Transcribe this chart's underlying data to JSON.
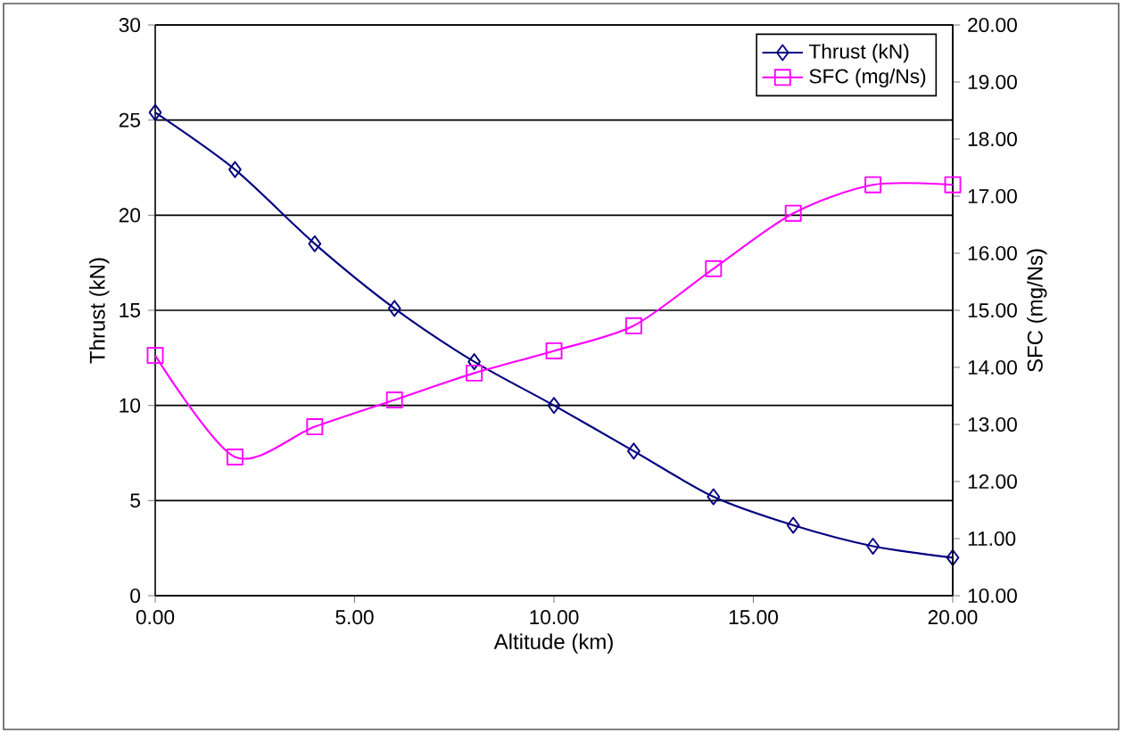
{
  "chart_data": {
    "type": "line",
    "xlabel": "Altitude (km)",
    "ylabel": "Thrust (kN)",
    "y2label": "SFC (mg/Ns)",
    "x": [
      0,
      2,
      4,
      6,
      8,
      10,
      12,
      14,
      16,
      18,
      20
    ],
    "series": [
      {
        "name": "Thrust (kN)",
        "color": "#000080",
        "marker": "diamond",
        "values": [
          25.4,
          22.4,
          18.5,
          15.1,
          12.3,
          10.0,
          7.6,
          5.2,
          3.7,
          2.6,
          2.0
        ]
      },
      {
        "name": "SFC (mg/Ns)",
        "color": "#ff00ff",
        "marker": "square",
        "axis": "y2",
        "values": [
          14.21,
          12.43,
          12.96,
          13.43,
          13.9,
          14.29,
          14.73,
          15.73,
          16.7,
          17.2,
          17.2
        ]
      }
    ],
    "xlim": [
      0,
      20
    ],
    "ylim": [
      0,
      30
    ],
    "y2lim": [
      10,
      20
    ],
    "xticks": [
      {
        "value": 0,
        "label": "0.00"
      },
      {
        "value": 5,
        "label": "5.00"
      },
      {
        "value": 10,
        "label": "10.00"
      },
      {
        "value": 15,
        "label": "15.00"
      },
      {
        "value": 20,
        "label": "20.00"
      }
    ],
    "yticks": [
      0,
      5,
      10,
      15,
      20,
      25,
      30
    ],
    "y2ticks": [
      {
        "value": 10,
        "label": "10.00"
      },
      {
        "value": 11,
        "label": "11.00"
      },
      {
        "value": 12,
        "label": "12.00"
      },
      {
        "value": 13,
        "label": "13.00"
      },
      {
        "value": 14,
        "label": "14.00"
      },
      {
        "value": 15,
        "label": "15.00"
      },
      {
        "value": 16,
        "label": "16.00"
      },
      {
        "value": 17,
        "label": "17.00"
      },
      {
        "value": 18,
        "label": "18.00"
      },
      {
        "value": 19,
        "label": "19.00"
      },
      {
        "value": 20,
        "label": "20.00"
      }
    ],
    "grid": "y",
    "legend": "top right",
    "line_style": "solid"
  }
}
